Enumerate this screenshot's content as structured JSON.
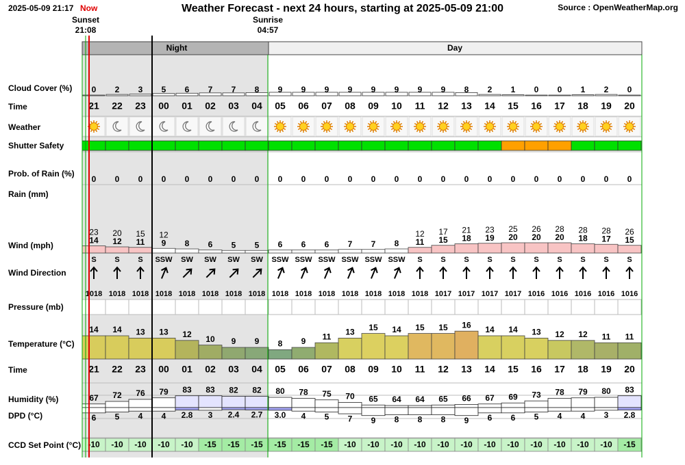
{
  "header": {
    "timestamp": "2025-05-09 21:17",
    "now": "Now",
    "title": "Weather Forecast - next 24 hours, starting at 2025-05-09 21:00",
    "source": "Source : OpenWeatherMap.org"
  },
  "sun": {
    "sunset_label": "Sunset",
    "sunset_time": "21:08",
    "sunrise_label": "Sunrise",
    "sunrise_time": "04:57"
  },
  "periods": {
    "night": "Night",
    "day": "Day"
  },
  "row_labels": {
    "cloud": "Cloud Cover (%)",
    "time": "Time",
    "weather": "Weather",
    "shutter": "Shutter Safety",
    "rain_prob": "Prob. of Rain (%)",
    "rain": "Rain (mm)",
    "wind": "Wind (mph)",
    "wind_dir": "Wind Direction",
    "pressure": "Pressure (mb)",
    "temperature": "Temperature (°C)",
    "time2": "Time",
    "humidity": "Humidity (%)",
    "dpd": "DPD (°C)",
    "ccd": "CCD Set Point (°C)"
  },
  "hours": [
    "21",
    "22",
    "23",
    "00",
    "01",
    "02",
    "03",
    "04",
    "05",
    "06",
    "07",
    "08",
    "09",
    "10",
    "11",
    "12",
    "13",
    "14",
    "15",
    "16",
    "17",
    "18",
    "19",
    "20"
  ],
  "cloud_cover": [
    0,
    2,
    3,
    5,
    6,
    7,
    7,
    8,
    9,
    9,
    9,
    9,
    9,
    9,
    9,
    9,
    8,
    2,
    1,
    0,
    0,
    1,
    2,
    0
  ],
  "weather_icons": [
    "sun",
    "moon",
    "moon",
    "moon",
    "moon",
    "moon",
    "moon",
    "moon",
    "sun",
    "sun",
    "sun",
    "sun",
    "sun",
    "sun",
    "sun",
    "sun",
    "sun",
    "sun",
    "sun",
    "sun",
    "sun",
    "sun",
    "sun",
    "sun"
  ],
  "shutter_colors": [
    "#00e000",
    "#00e000",
    "#00e000",
    "#00e000",
    "#00e000",
    "#00e000",
    "#00e000",
    "#00e000",
    "#00e000",
    "#00e000",
    "#00e000",
    "#00e000",
    "#00e000",
    "#00e000",
    "#00e000",
    "#00e000",
    "#00e000",
    "#00e000",
    "#ffa000",
    "#ffa000",
    "#ffa000",
    "#00e000",
    "#00e000",
    "#00e000"
  ],
  "rain_probability": [
    0,
    0,
    0,
    0,
    0,
    0,
    0,
    0,
    0,
    0,
    0,
    0,
    0,
    0,
    0,
    0,
    0,
    0,
    0,
    0,
    0,
    0,
    0,
    0
  ],
  "wind_gust": [
    23,
    20,
    15,
    12,
    null,
    null,
    null,
    null,
    null,
    null,
    null,
    null,
    null,
    null,
    12,
    17,
    21,
    23,
    25,
    26,
    28,
    28,
    28,
    26
  ],
  "wind_speed": [
    14,
    12,
    11,
    9,
    8,
    6,
    5,
    5,
    6,
    6,
    6,
    7,
    7,
    8,
    11,
    15,
    18,
    19,
    20,
    20,
    20,
    18,
    17,
    15
  ],
  "wind_colors": [
    "#f8c4c4",
    "#f8c4c4",
    "#f8c4c4",
    "#ffffff",
    "#ffffff",
    "#ffffff",
    "#ffffff",
    "#ffffff",
    "#ffffff",
    "#ffffff",
    "#ffffff",
    "#ffffff",
    "#ffffff",
    "#ffffff",
    "#f8c4c4",
    "#f8c4c4",
    "#f8c4c4",
    "#f8c4c4",
    "#f8c4c4",
    "#f8c4c4",
    "#f8c4c4",
    "#f8c4c4",
    "#f8c4c4",
    "#f8c4c4"
  ],
  "wind_direction": [
    "S",
    "S",
    "S",
    "SSW",
    "SW",
    "SW",
    "SW",
    "SW",
    "SSW",
    "SSW",
    "SSW",
    "SSW",
    "SSW",
    "SSW",
    "S",
    "S",
    "S",
    "S",
    "S",
    "S",
    "S",
    "S",
    "S",
    "S"
  ],
  "wind_from_deg": [
    180,
    180,
    180,
    202.5,
    225,
    225,
    225,
    225,
    202.5,
    202.5,
    202.5,
    202.5,
    202.5,
    202.5,
    180,
    180,
    180,
    180,
    180,
    180,
    180,
    180,
    180,
    180
  ],
  "pressure": [
    1018,
    1018,
    1018,
    1018,
    1018,
    1018,
    1018,
    1018,
    1018,
    1018,
    1018,
    1018,
    1018,
    1018,
    1018,
    1017,
    1017,
    1017,
    1017,
    1016,
    1016,
    1016,
    1016,
    1016
  ],
  "temperature": [
    14,
    14,
    13,
    13,
    12,
    10,
    9,
    9,
    8,
    9,
    11,
    13,
    15,
    14,
    15,
    15,
    16,
    14,
    14,
    13,
    12,
    12,
    11,
    11
  ],
  "temperature_colors": [
    "#d8cc5c",
    "#d8cc5c",
    "#d8cc5c",
    "#d8cc5c",
    "#b4b45c",
    "#a0ac64",
    "#90a870",
    "#88a878",
    "#80a880",
    "#90ac70",
    "#b0b860",
    "#d8d060",
    "#dcd060",
    "#dcd060",
    "#e0b860",
    "#e0b860",
    "#e0b060",
    "#d8d060",
    "#d8d060",
    "#d8d060",
    "#c8c860",
    "#b0b868",
    "#a8b068",
    "#a0b068"
  ],
  "humidity": [
    67,
    72,
    76,
    79,
    83,
    83,
    82,
    82,
    80,
    78,
    75,
    70,
    65,
    64,
    64,
    65,
    66,
    67,
    69,
    73,
    78,
    79,
    80,
    83
  ],
  "humidity_colors": [
    "#ffffff",
    "#ffffff",
    "#ffffff",
    "#ffffff",
    "#e4e4ff",
    "#e4e4ff",
    "#e4e4ff",
    "#e4e4ff",
    "#ffffff",
    "#ffffff",
    "#ffffff",
    "#ffffff",
    "#ffffff",
    "#ffffff",
    "#ffffff",
    "#ffffff",
    "#ffffff",
    "#ffffff",
    "#ffffff",
    "#ffffff",
    "#ffffff",
    "#ffffff",
    "#ffffff",
    "#e4e4ff"
  ],
  "dew_point_depression": [
    6,
    5,
    4,
    4,
    2.8,
    3,
    2.4,
    2.7,
    3.0,
    4,
    5,
    7,
    9,
    8,
    8,
    8,
    9,
    6,
    6,
    5,
    4,
    4,
    3,
    2.8
  ],
  "dpd_value_labels": [
    "6",
    "5",
    "4",
    "4",
    "2.8",
    "3",
    "2.4",
    "2.7",
    "3.0",
    "4",
    "5",
    "7",
    "9",
    "8",
    "8",
    "8",
    "9",
    "6",
    "6",
    "5",
    "4",
    "4",
    "3",
    "2.8"
  ],
  "dpd_colors": [
    "#ffffff",
    "#ffffff",
    "#ffffff",
    "#ffffff",
    "#a8a8f8",
    "#ffffff",
    "#a8a8f8",
    "#a8a8f8",
    "#a8a8f8",
    "#ffffff",
    "#ffffff",
    "#ffffff",
    "#ffffff",
    "#ffffff",
    "#ffffff",
    "#ffffff",
    "#ffffff",
    "#ffffff",
    "#ffffff",
    "#ffffff",
    "#ffffff",
    "#ffffff",
    "#ffffff",
    "#a8a8f8"
  ],
  "ccd_set_point": [
    -10,
    -10,
    -10,
    -10,
    -10,
    -15,
    -15,
    -15,
    -15,
    -15,
    -15,
    -10,
    -10,
    -10,
    -10,
    -10,
    -10,
    -10,
    -10,
    -10,
    -10,
    -10,
    -10,
    -15
  ],
  "ccd_colors": [
    "#c8f4c8",
    "#c8f4c8",
    "#c8f4c8",
    "#c8f4c8",
    "#c8f4c8",
    "#a4eca4",
    "#a4eca4",
    "#a4eca4",
    "#a4eca4",
    "#a4eca4",
    "#a4eca4",
    "#c8f4c8",
    "#c8f4c8",
    "#c8f4c8",
    "#c8f4c8",
    "#c8f4c8",
    "#c8f4c8",
    "#c8f4c8",
    "#c8f4c8",
    "#c8f4c8",
    "#c8f4c8",
    "#c8f4c8",
    "#c8f4c8",
    "#a4eca4"
  ]
}
